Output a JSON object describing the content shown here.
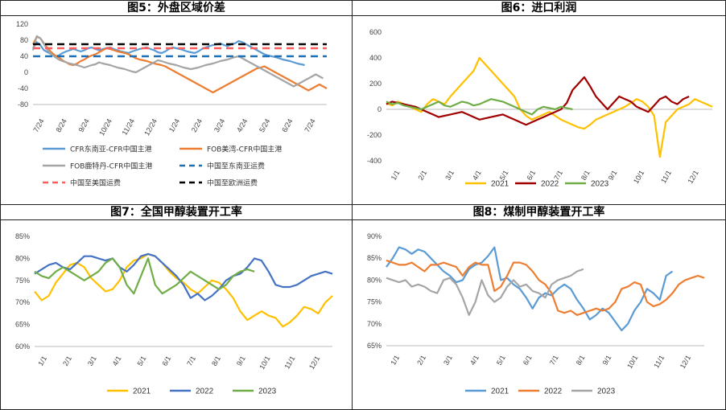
{
  "panels": [
    {
      "title": "图5：外盘区域价差"
    },
    {
      "title": "图6：进口利润"
    },
    {
      "title": "图7：全国甲醇装置开工率"
    },
    {
      "title": "图8：煤制甲醇装置开工率"
    }
  ],
  "chart_data": [
    {
      "type": "line",
      "title": "图5：外盘区域价差",
      "x_ticks": [
        "7/24",
        "8/24",
        "9/24",
        "10/24",
        "11/24",
        "12/24",
        "1/24",
        "2/24",
        "3/24",
        "4/24",
        "5/24",
        "6/24",
        "7/24"
      ],
      "y_ticks": [
        "120",
        "80",
        "40",
        "0",
        "-40",
        "-80"
      ],
      "ylim": [
        -80,
        120
      ],
      "legend_position": "bottom",
      "series": [
        {
          "name": "CFR东南亚-CFR中国主港",
          "color": "#5B9BD5",
          "style": "solid",
          "values": [
            60,
            75,
            68,
            55,
            50,
            45,
            40,
            42,
            48,
            52,
            55,
            58,
            55,
            52,
            55,
            60,
            62,
            58,
            55,
            58,
            60,
            62,
            58,
            55,
            52,
            50,
            48,
            52,
            55,
            58,
            60,
            62,
            58,
            55,
            50,
            48,
            52,
            58,
            62,
            60,
            58,
            55,
            52,
            50,
            48,
            52,
            58,
            62,
            65,
            68,
            70,
            72,
            68,
            65,
            70,
            72,
            78,
            75,
            70,
            65,
            60,
            55,
            50,
            45,
            42,
            40,
            38,
            35,
            32,
            30,
            28,
            25,
            22,
            20,
            18
          ]
        },
        {
          "name": "FOB美湾-CFR中国主港",
          "color": "#ED7D31",
          "style": "solid",
          "values": [
            70,
            88,
            85,
            72,
            60,
            50,
            42,
            38,
            30,
            25,
            20,
            18,
            22,
            28,
            32,
            38,
            42,
            45,
            50,
            55,
            60,
            58,
            55,
            52,
            50,
            48,
            45,
            40,
            35,
            32,
            30,
            28,
            25,
            22,
            20,
            18,
            15,
            10,
            5,
            0,
            -5,
            -10,
            -15,
            -20,
            -25,
            -30,
            -35,
            -40,
            -45,
            -50,
            -45,
            -40,
            -35,
            -30,
            -25,
            -20,
            -15,
            -10,
            -5,
            0,
            5,
            10,
            12,
            15,
            10,
            5,
            0,
            -5,
            -10,
            -15,
            -20,
            -25,
            -30,
            -35,
            -40,
            -45,
            -40,
            -35,
            -30,
            -35,
            -40
          ]
        },
        {
          "name": "FOB鹿特丹-CFR中国主港",
          "color": "#A5A5A5",
          "style": "solid",
          "values": [
            55,
            90,
            85,
            70,
            55,
            45,
            38,
            32,
            28,
            25,
            22,
            20,
            18,
            15,
            12,
            15,
            18,
            20,
            25,
            22,
            20,
            18,
            15,
            12,
            10,
            8,
            5,
            2,
            0,
            5,
            10,
            15,
            20,
            25,
            30,
            28,
            25,
            22,
            20,
            18,
            15,
            12,
            10,
            8,
            10,
            12,
            15,
            18,
            20,
            22,
            25,
            28,
            30,
            32,
            35,
            38,
            40,
            35,
            30,
            25,
            20,
            15,
            10,
            5,
            0,
            -5,
            -10,
            -15,
            -20,
            -25,
            -30,
            -35,
            -30,
            -25,
            -20,
            -15,
            -10,
            -5,
            -10,
            -15
          ]
        },
        {
          "name": "中国至东南亚运费",
          "color": "#1F6FB4",
          "style": "dashed",
          "values": [
            40
          ]
        },
        {
          "name": "中国至美国运费",
          "color": "#FF5B5B",
          "style": "dashed",
          "values": [
            60
          ]
        },
        {
          "name": "中国至欧洲运费",
          "color": "#000000",
          "style": "dashed",
          "values": [
            70
          ]
        }
      ]
    },
    {
      "type": "line",
      "title": "图6：进口利润",
      "x_ticks": [
        "1/1",
        "2/1",
        "3/1",
        "4/1",
        "5/1",
        "6/1",
        "7/1",
        "8/1",
        "9/1",
        "10/1",
        "11/1",
        "12/1"
      ],
      "y_ticks": [
        "600",
        "400",
        "200",
        "0",
        "-200",
        "-400"
      ],
      "ylim": [
        -400,
        600
      ],
      "legend_position": "bottom",
      "series": [
        {
          "name": "2021",
          "color": "#FFC000",
          "values": [
            50,
            30,
            60,
            40,
            20,
            0,
            -20,
            40,
            80,
            60,
            40,
            100,
            150,
            200,
            250,
            300,
            400,
            350,
            300,
            250,
            200,
            150,
            100,
            0,
            -50,
            -80,
            -60,
            -40,
            -20,
            -50,
            -80,
            -100,
            -120,
            -140,
            -150,
            -120,
            -80,
            -60,
            -40,
            -20,
            0,
            20,
            50,
            80,
            60,
            20,
            -50,
            -370,
            -100,
            -50,
            0,
            20,
            40,
            80,
            60,
            40,
            20
          ]
        },
        {
          "name": "2022",
          "color": "#A00000",
          "values": [
            40,
            60,
            50,
            40,
            30,
            20,
            0,
            -20,
            -40,
            -60,
            -50,
            -40,
            -30,
            -20,
            -40,
            -60,
            -80,
            -70,
            -60,
            -50,
            -40,
            -60,
            -80,
            -100,
            -120,
            -100,
            -80,
            -60,
            -40,
            -20,
            0,
            50,
            150,
            200,
            250,
            180,
            100,
            50,
            0,
            50,
            100,
            80,
            60,
            20,
            0,
            -20,
            30,
            80,
            100,
            60,
            40,
            80,
            100
          ]
        },
        {
          "name": "2023",
          "color": "#70AD47",
          "values": [
            60,
            40,
            50,
            30,
            20,
            10,
            0,
            20,
            40,
            60,
            30,
            20,
            40,
            60,
            50,
            30,
            40,
            60,
            80,
            70,
            60,
            40,
            20,
            0,
            -20,
            -40,
            0,
            20,
            10,
            0,
            20,
            10,
            0
          ]
        }
      ]
    },
    {
      "type": "line",
      "title": "图7：全国甲醇装置开工率",
      "x_ticks": [
        "1/1",
        "2/1",
        "3/1",
        "4/1",
        "5/1",
        "6/1",
        "7/1",
        "8/1",
        "9/1",
        "10/1",
        "11/1",
        "12/1"
      ],
      "y_ticks": [
        "85%",
        "80%",
        "75%",
        "70%",
        "65%",
        "60%"
      ],
      "ylim": [
        60,
        85
      ],
      "legend_position": "bottom",
      "series": [
        {
          "name": "2021",
          "color": "#FFC000",
          "values": [
            72.5,
            70.5,
            71.5,
            74.5,
            76.5,
            78.5,
            79,
            78,
            75.5,
            74,
            72.5,
            73,
            75,
            78,
            79.5,
            80,
            81,
            80.5,
            79,
            77,
            75.5,
            74.5,
            73,
            72,
            73.5,
            75,
            74.5,
            73,
            71,
            68,
            66,
            67,
            68,
            67,
            66.5,
            64.5,
            65.5,
            67,
            69,
            68.5,
            67.5,
            70,
            71.5
          ]
        },
        {
          "name": "2022",
          "color": "#4472C4",
          "values": [
            76.5,
            77.5,
            78.5,
            79,
            78,
            77.5,
            79,
            80.5,
            80.5,
            80,
            79.5,
            80,
            78,
            77,
            78.5,
            80.5,
            81,
            80.5,
            79,
            77.5,
            76,
            74,
            71,
            72,
            70.5,
            71.5,
            73,
            75,
            76,
            76.5,
            78,
            80,
            79.5,
            77,
            74,
            73.5,
            73.5,
            74,
            75,
            76,
            76.5,
            77,
            76.5
          ]
        },
        {
          "name": "2023",
          "color": "#70AD47",
          "values": [
            77,
            76,
            75.5,
            77,
            78,
            77,
            76,
            75,
            76,
            77,
            79,
            80,
            78,
            74,
            72,
            76,
            80,
            74,
            72,
            73,
            74,
            75.5,
            77,
            76,
            75,
            74,
            73,
            74,
            76,
            77,
            77.5,
            77
          ]
        }
      ]
    },
    {
      "type": "line",
      "title": "图8：煤制甲醇装置开工率",
      "x_ticks": [
        "1/1",
        "2/1",
        "3/1",
        "4/1",
        "5/1",
        "6/1",
        "7/1",
        "8/1",
        "9/1",
        "10/1",
        "11/1",
        "12/1"
      ],
      "y_ticks": [
        "90%",
        "85%",
        "80%",
        "75%",
        "70%",
        "65%"
      ],
      "ylim": [
        65,
        90
      ],
      "legend_position": "bottom",
      "series": [
        {
          "name": "2021",
          "color": "#5B9BD5",
          "values": [
            83,
            85,
            87.5,
            87,
            86,
            87,
            86.5,
            85,
            83.5,
            82,
            81,
            79.5,
            80,
            82.5,
            83.5,
            84,
            85.5,
            87.5,
            80,
            80.5,
            79,
            78,
            76,
            73.5,
            76,
            77,
            76.5,
            78,
            79,
            78,
            75.5,
            73.5,
            71,
            72,
            73.5,
            72.5,
            70.5,
            68.5,
            70,
            73,
            75,
            78,
            77,
            75.5,
            81,
            82
          ]
        },
        {
          "name": "2022",
          "color": "#ED7D31",
          "values": [
            84.5,
            84,
            83.5,
            83.5,
            84,
            83,
            82,
            83.5,
            83.5,
            84,
            83.5,
            83,
            81,
            83,
            84,
            83.5,
            83.5,
            77.5,
            78.5,
            81,
            84,
            84,
            83.5,
            82,
            80,
            79,
            77,
            73,
            72.5,
            73,
            72,
            72.5,
            73,
            73.5,
            73,
            73.5,
            75,
            78,
            78.5,
            79.5,
            79,
            75,
            74,
            74.5,
            75.5,
            77,
            79,
            80,
            80.5,
            81,
            80.5
          ]
        },
        {
          "name": "2023",
          "color": "#A5A5A5",
          "values": [
            80.5,
            80,
            79.5,
            80,
            78.5,
            79,
            78.5,
            77.5,
            77,
            80,
            80.5,
            79,
            76,
            72,
            75,
            80,
            76.5,
            75,
            76,
            78.5,
            80,
            78.5,
            79,
            77.5,
            77,
            76,
            79,
            80,
            80.5,
            81,
            82,
            82.5
          ]
        }
      ]
    }
  ]
}
